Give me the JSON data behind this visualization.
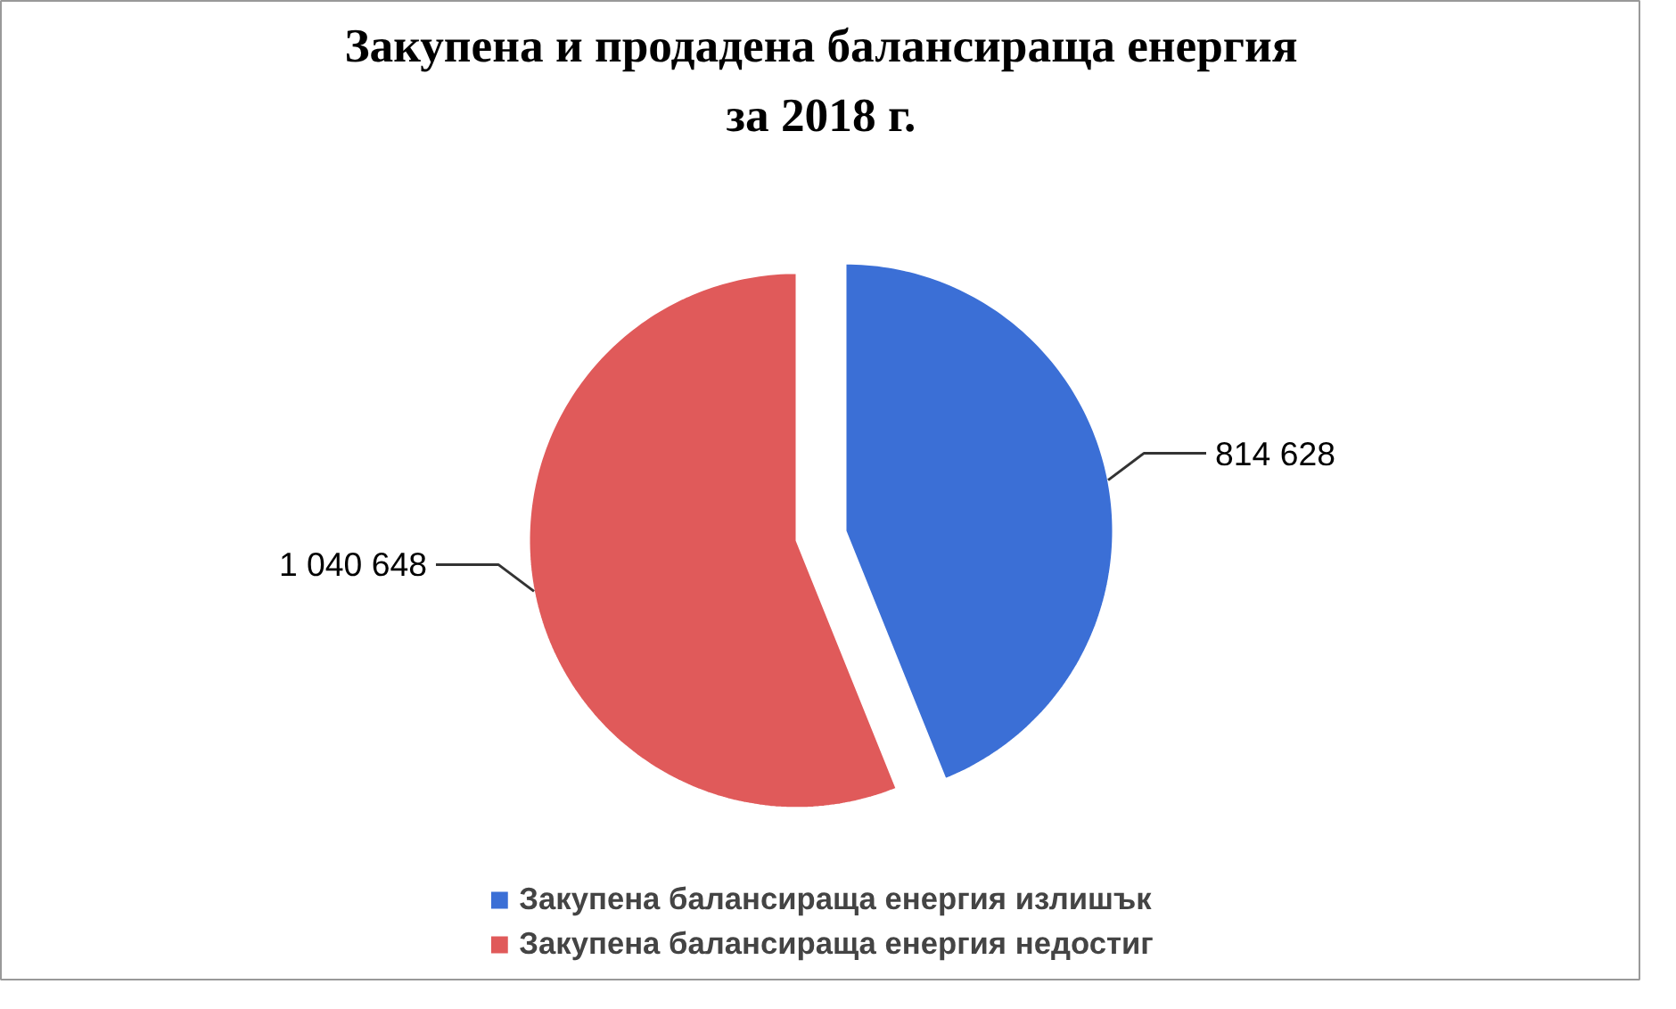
{
  "chart_data": {
    "type": "pie",
    "title": "Закупена и продадена балансираща енергия\nза 2018 г.",
    "categories": [
      "Закупена балансираща енергия излишък",
      "Закупена балансираща енергия недостиг"
    ],
    "values": [
      814628,
      1040648
    ],
    "colors": [
      "#3b6fd6",
      "#e05a5a"
    ],
    "value_labels": [
      "814 628",
      "1 040 648"
    ],
    "legend": "bottom"
  }
}
